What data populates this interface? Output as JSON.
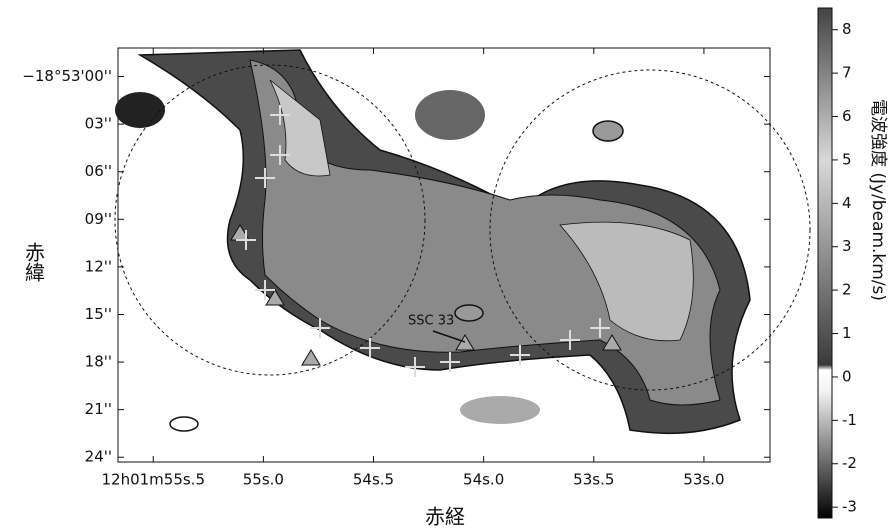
{
  "chart_data": {
    "type": "image",
    "xlabel": "赤経",
    "ylabel": "赤緯",
    "colorbar_label": "電波強度 (Jy/beam.km/s)",
    "annotation": "SSC 33",
    "xlim": [
      55.66,
      52.7
    ],
    "xticks": [
      {
        "value": 55.5,
        "label": "12h01m55s.5"
      },
      {
        "value": 55.0,
        "label": "55s.0"
      },
      {
        "value": 54.5,
        "label": "54s.5"
      },
      {
        "value": 54.0,
        "label": "54s.0"
      },
      {
        "value": 53.5,
        "label": "53s.5"
      },
      {
        "value": 53.0,
        "label": "53s.0"
      }
    ],
    "ylim": [
      24.3,
      -1.8
    ],
    "yticks": [
      {
        "value": 0,
        "label": "−18°53'00''"
      },
      {
        "value": 3,
        "label": "03''"
      },
      {
        "value": 6,
        "label": "06''"
      },
      {
        "value": 9,
        "label": "09''"
      },
      {
        "value": 12,
        "label": "12''"
      },
      {
        "value": 15,
        "label": "15''"
      },
      {
        "value": 18,
        "label": "18''"
      },
      {
        "value": 21,
        "label": "21''"
      },
      {
        "value": 24,
        "label": "24''"
      }
    ],
    "colorbar_lim": [
      -3.25,
      8.5
    ],
    "colorbar_ticks": [
      -3,
      -2,
      -1,
      0,
      1,
      2,
      3,
      4,
      5,
      6,
      7,
      8
    ]
  }
}
